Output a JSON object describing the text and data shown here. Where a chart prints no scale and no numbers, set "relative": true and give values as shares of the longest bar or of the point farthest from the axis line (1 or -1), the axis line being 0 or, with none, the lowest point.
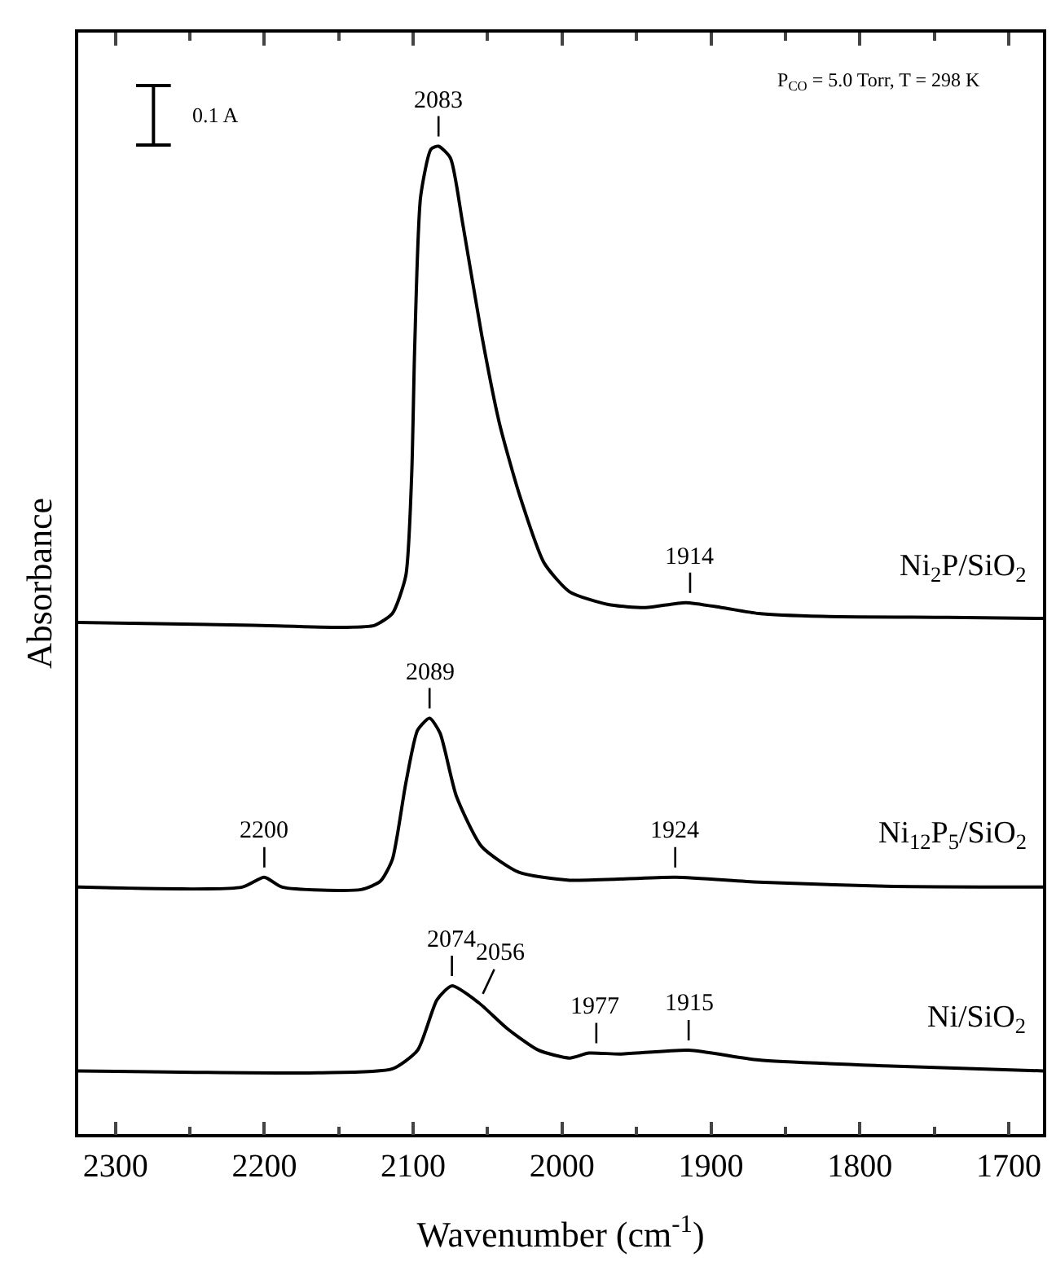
{
  "chart_data": {
    "type": "line",
    "relative": true,
    "xlabel": "Wavenumber (cm$^{-1}$)",
    "ylabel": "Absorbance",
    "xlim": [
      2325,
      1677
    ],
    "xticks": [
      2300,
      {
        "value": 2250,
        "label": null
      },
      2200,
      {
        "value": 2150,
        "label": null
      },
      2100,
      {
        "value": 2050,
        "label": null
      },
      2000,
      {
        "value": 1950,
        "label": null
      },
      1900,
      {
        "value": 1850,
        "label": null
      },
      1800,
      {
        "value": 1750,
        "label": null
      },
      1700
    ],
    "grid": false,
    "legend": false,
    "marker": "none",
    "line_style": "solid",
    "series": [
      {
        "name": "Ni$_{2}$P/SiO$_{2}$",
        "color": "#000000",
        "x": [
          2325,
          2207,
          2147,
          2126,
          2114,
          2105,
          2101,
          2099,
          2095,
          2088,
          2083,
          2075,
          2067,
          2054,
          2042,
          2029,
          2012,
          1995,
          1969,
          1944,
          1917,
          1893,
          1868,
          1825,
          1741,
          1677
        ],
        "values": [
          0.518,
          0.515,
          0.513,
          0.515,
          0.527,
          0.565,
          0.668,
          0.796,
          0.949,
          0.997,
          1.0,
          0.988,
          0.924,
          0.809,
          0.719,
          0.649,
          0.578,
          0.549,
          0.536,
          0.533,
          0.538,
          0.533,
          0.527,
          0.524,
          0.523,
          0.522
        ]
      },
      {
        "name": "Ni$_{12}$P$_{5}$/SiO$_{2}$",
        "color": "#000000",
        "x": [
          2325,
          2215,
          2200,
          2188,
          2135,
          2122,
          2114,
          2105,
          2097,
          2089,
          2082,
          2071,
          2054,
          2029,
          1995,
          1924,
          1868,
          1783,
          1677
        ],
        "values": [
          0.25,
          0.25,
          0.26,
          0.25,
          0.2475,
          0.256,
          0.278,
          0.355,
          0.409,
          0.421,
          0.406,
          0.342,
          0.291,
          0.265,
          0.257,
          0.26,
          0.255,
          0.251,
          0.25
        ]
      },
      {
        "name": "Ni/SiO$_{2}$",
        "color": "#000000",
        "x": [
          2325,
          2164,
          2114,
          2097,
          2084,
          2074,
          2056,
          2037,
          2016,
          1995,
          1982,
          1961,
          1915,
          1868,
          1783,
          1677
        ],
        "values": [
          0.064,
          0.062,
          0.066,
          0.085,
          0.136,
          0.15,
          0.133,
          0.107,
          0.085,
          0.077,
          0.082,
          0.081,
          0.085,
          0.075,
          0.069,
          0.064
        ]
      }
    ],
    "annotations": [
      {
        "text": "2083",
        "x": 2083,
        "y": 1.0
      },
      {
        "text": "1914",
        "x": 1914,
        "y": 0.538
      },
      {
        "text": "2200",
        "x": 2200,
        "y": 0.26
      },
      {
        "text": "2089",
        "x": 2089,
        "y": 0.421
      },
      {
        "text": "1924",
        "x": 1924,
        "y": 0.26
      },
      {
        "text": "2074",
        "x": 2074,
        "y": 0.15
      },
      {
        "text": "2056",
        "x": 2056,
        "y": 0.133
      },
      {
        "text": "1977",
        "x": 1977,
        "y": 0.082
      },
      {
        "text": "1915",
        "x": 1915,
        "y": 0.085
      },
      "0.1 A",
      "P$_{CO}$ = 5.0 Torr, T = 298 K"
    ]
  }
}
